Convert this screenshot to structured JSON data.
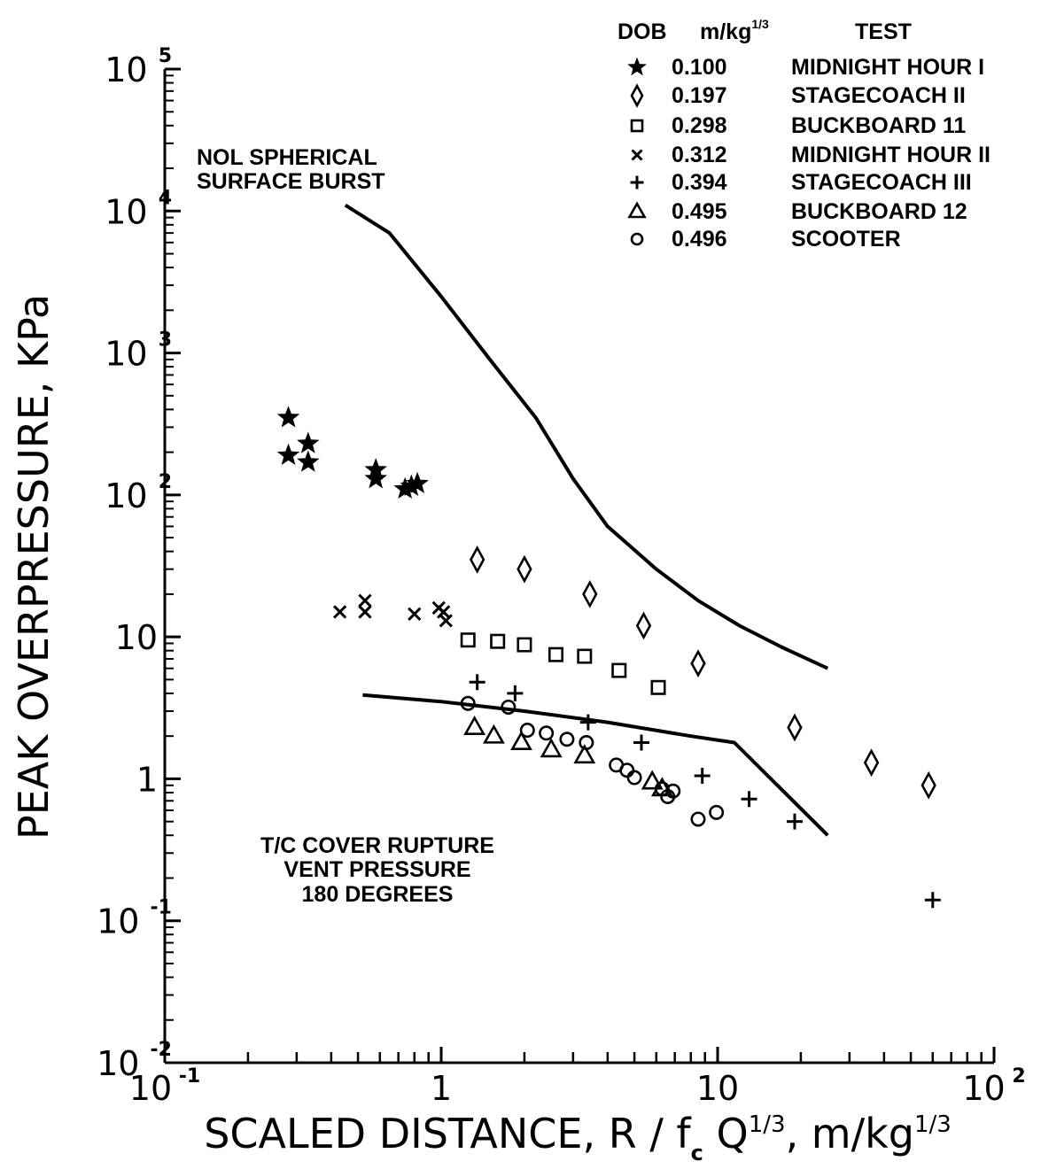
{
  "chart_data": {
    "type": "scatter",
    "x_scale": "log",
    "y_scale": "log",
    "xlim": [
      0.1,
      100
    ],
    "ylim": [
      0.01,
      100000
    ],
    "xlabel": {
      "main": "SCALED DISTANCE, R / f",
      "sub": "c",
      "rest": " Q",
      "sup": "1/3",
      "end": ", m/kg",
      "sup2": "1/3"
    },
    "ylabel": "PEAK OVERPRESSURE, KPa",
    "x_ticks": [
      {
        "value": 0.1,
        "base": "10",
        "exp": "-1"
      },
      {
        "value": 1,
        "base": "1",
        "exp": ""
      },
      {
        "value": 10,
        "base": "10",
        "exp": ""
      },
      {
        "value": 100,
        "base": "10",
        "exp": "2"
      }
    ],
    "y_ticks": [
      {
        "value": 0.01,
        "base": "10",
        "exp": "-2"
      },
      {
        "value": 0.1,
        "base": "10",
        "exp": "-1"
      },
      {
        "value": 1,
        "base": "1",
        "exp": ""
      },
      {
        "value": 10,
        "base": "10",
        "exp": ""
      },
      {
        "value": 100,
        "base": "10",
        "exp": "2"
      },
      {
        "value": 1000,
        "base": "10",
        "exp": "3"
      },
      {
        "value": 10000,
        "base": "10",
        "exp": "4"
      },
      {
        "value": 100000,
        "base": "10",
        "exp": "5"
      }
    ],
    "legend": {
      "placement": "top-right",
      "headers": {
        "dob": "DOB",
        "unit": "m/kg",
        "unit_sup": "1/3",
        "test": "TEST"
      }
    },
    "series": [
      {
        "name": "MIDNIGHT HOUR I",
        "dob": "0.100",
        "marker": "star",
        "points": [
          [
            0.28,
            350
          ],
          [
            0.28,
            190
          ],
          [
            0.33,
            230
          ],
          [
            0.33,
            170
          ],
          [
            0.58,
            150
          ],
          [
            0.58,
            130
          ],
          [
            0.74,
            110
          ],
          [
            0.78,
            115
          ],
          [
            0.82,
            120
          ]
        ]
      },
      {
        "name": "STAGECOACH II",
        "dob": "0.197",
        "marker": "diamond",
        "points": [
          [
            1.35,
            35
          ],
          [
            2.0,
            30
          ],
          [
            3.45,
            20
          ],
          [
            5.4,
            12
          ],
          [
            8.5,
            6.5
          ],
          [
            19,
            2.3
          ],
          [
            36,
            1.3
          ],
          [
            58,
            0.9
          ]
        ]
      },
      {
        "name": "BUCKBOARD 11",
        "dob": "0.298",
        "marker": "square",
        "points": [
          [
            1.25,
            9.5
          ],
          [
            1.6,
            9.3
          ],
          [
            2.0,
            8.8
          ],
          [
            2.6,
            7.5
          ],
          [
            3.3,
            7.3
          ],
          [
            4.4,
            5.8
          ],
          [
            6.1,
            4.4
          ]
        ]
      },
      {
        "name": "MIDNIGHT HOUR II",
        "dob": "0.312",
        "marker": "cross",
        "points": [
          [
            0.43,
            15
          ],
          [
            0.53,
            18
          ],
          [
            0.53,
            15
          ],
          [
            0.8,
            14.5
          ],
          [
            0.98,
            16
          ],
          [
            1.02,
            15
          ],
          [
            1.04,
            13
          ]
        ]
      },
      {
        "name": "STAGECOACH III",
        "dob": "0.394",
        "marker": "plus",
        "points": [
          [
            1.35,
            4.8
          ],
          [
            1.85,
            4.0
          ],
          [
            3.4,
            2.5
          ],
          [
            5.3,
            1.8
          ],
          [
            8.8,
            1.05
          ],
          [
            13,
            0.72
          ],
          [
            19,
            0.5
          ],
          [
            60,
            0.14
          ]
        ]
      },
      {
        "name": "BUCKBOARD 12",
        "dob": "0.495",
        "marker": "triangle",
        "points": [
          [
            1.32,
            2.3
          ],
          [
            1.55,
            2.0
          ],
          [
            1.95,
            1.8
          ],
          [
            2.5,
            1.6
          ],
          [
            3.3,
            1.45
          ],
          [
            5.8,
            0.95
          ],
          [
            6.3,
            0.85
          ]
        ]
      },
      {
        "name": "SCOOTER",
        "dob": "0.496",
        "marker": "circle",
        "points": [
          [
            1.25,
            3.4
          ],
          [
            1.75,
            3.2
          ],
          [
            2.05,
            2.2
          ],
          [
            2.4,
            2.1
          ],
          [
            2.85,
            1.9
          ],
          [
            3.35,
            1.8
          ],
          [
            4.3,
            1.25
          ],
          [
            4.7,
            1.15
          ],
          [
            5.0,
            1.02
          ],
          [
            6.3,
            0.85
          ],
          [
            6.6,
            0.75
          ],
          [
            6.9,
            0.82
          ],
          [
            8.5,
            0.52
          ],
          [
            9.9,
            0.58
          ]
        ]
      }
    ],
    "curves": [
      {
        "label": "NOL SPHERICAL SURFACE BURST",
        "points": [
          [
            0.45,
            11000
          ],
          [
            0.65,
            7000
          ],
          [
            1.0,
            2500
          ],
          [
            1.5,
            900
          ],
          [
            2.2,
            350
          ],
          [
            3.0,
            130
          ],
          [
            4.0,
            60
          ],
          [
            6.0,
            30
          ],
          [
            8.5,
            18
          ],
          [
            12,
            12
          ],
          [
            17,
            8.5
          ],
          [
            25,
            6
          ]
        ]
      },
      {
        "label": "T/C COVER RUPTURE VENT PRESSURE 180 DEGREES",
        "points": [
          [
            0.52,
            3.9
          ],
          [
            1.0,
            3.5
          ],
          [
            2.0,
            3.0
          ],
          [
            4.0,
            2.5
          ],
          [
            8.0,
            2.0
          ],
          [
            11.5,
            1.8
          ],
          [
            25,
            0.4
          ]
        ]
      }
    ],
    "annotations": {
      "nol_line1": "NOL SPHERICAL",
      "nol_line2": "SURFACE BURST",
      "tc_line1": "T/C COVER RUPTURE",
      "tc_line2": "VENT PRESSURE",
      "tc_line3": "180 DEGREES"
    }
  }
}
